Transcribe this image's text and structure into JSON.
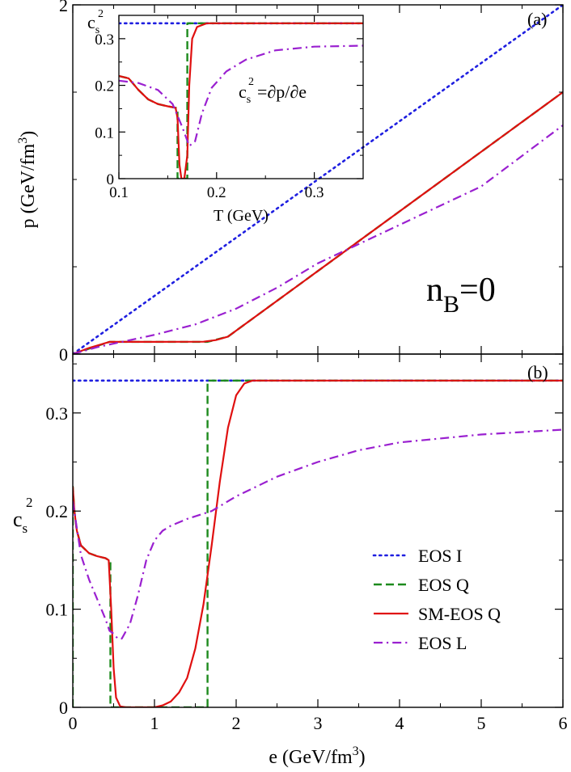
{
  "chart_data": [
    {
      "id": "panel-a",
      "type": "line",
      "panel_label": "(a)",
      "xlabel": "",
      "ylabel_main": "p (GeV/fm",
      "ylabel_sup": "3",
      "ylabel_close": ")",
      "xlim": [
        0,
        6
      ],
      "ylim": [
        0,
        2.0
      ],
      "yticks": [
        0,
        2
      ],
      "annotation_main": "n",
      "annotation_sub": "B",
      "annotation_rest": "=0",
      "series": [
        {
          "name": "EOS I",
          "color": "#1f1fe0",
          "dash": "dotted",
          "x": [
            0,
            6
          ],
          "y": [
            0,
            2.0
          ]
        },
        {
          "name": "EOS Q",
          "color": "#1d8a1d",
          "dash": "dashed",
          "x": [
            0,
            0.45,
            1.2,
            1.65,
            1.9,
            6
          ],
          "y": [
            0,
            0.07,
            0.07,
            0.07,
            0.1,
            1.5
          ]
        },
        {
          "name": "SM-EOS Q",
          "color": "#e01010",
          "dash": "solid",
          "x": [
            0,
            0.2,
            0.45,
            1.0,
            1.6,
            1.75,
            1.9,
            6
          ],
          "y": [
            0,
            0.035,
            0.07,
            0.07,
            0.071,
            0.08,
            0.1,
            1.5
          ]
        },
        {
          "name": "EOS L",
          "color": "#9a20d0",
          "dash": "dashdot",
          "x": [
            0,
            0.3,
            0.6,
            1.0,
            1.5,
            2.0,
            2.5,
            3.0,
            4.0,
            5.0,
            6.0
          ],
          "y": [
            0,
            0.04,
            0.07,
            0.11,
            0.17,
            0.26,
            0.38,
            0.52,
            0.74,
            0.96,
            1.31
          ]
        }
      ]
    },
    {
      "id": "inset",
      "type": "line",
      "ylabel_main": "c",
      "ylabel_sub": "s",
      "ylabel_sup": "2",
      "xlabel": "T (GeV)",
      "xlim": [
        0.1,
        0.35
      ],
      "ylim": [
        0,
        0.35
      ],
      "xticks": [
        0.1,
        0.2,
        0.3
      ],
      "yticks": [
        0,
        0.1,
        0.2,
        0.3
      ],
      "formula_c": "c",
      "formula_s": "s",
      "formula_2": "2",
      "formula_rest": "=∂p/∂e",
      "series": [
        {
          "name": "EOS I",
          "color": "#1f1fe0",
          "dash": "dotted",
          "x": [
            0.1,
            0.35
          ],
          "y": [
            0.333,
            0.333
          ]
        },
        {
          "name": "EOS Q",
          "color": "#1d8a1d",
          "dash": "dashed",
          "x": [
            0.1,
            0.11,
            0.12,
            0.13,
            0.14,
            0.15,
            0.158,
            0.16,
            0.16,
            0.17,
            0.17,
            0.35
          ],
          "y": [
            0.22,
            0.215,
            0.19,
            0.17,
            0.16,
            0.155,
            0.152,
            0.15,
            0.0,
            0.0,
            0.333,
            0.333
          ]
        },
        {
          "name": "SM-EOS Q",
          "color": "#e01010",
          "dash": "solid",
          "x": [
            0.1,
            0.11,
            0.12,
            0.13,
            0.14,
            0.15,
            0.158,
            0.16,
            0.162,
            0.164,
            0.167,
            0.17,
            0.172,
            0.175,
            0.18,
            0.19,
            0.2,
            0.35
          ],
          "y": [
            0.22,
            0.215,
            0.19,
            0.17,
            0.16,
            0.155,
            0.152,
            0.13,
            0.03,
            0.0,
            0.0,
            0.05,
            0.2,
            0.3,
            0.325,
            0.333,
            0.333,
            0.333
          ]
        },
        {
          "name": "EOS L",
          "color": "#9a20d0",
          "dash": "dashdot",
          "x": [
            0.1,
            0.12,
            0.14,
            0.155,
            0.165,
            0.172,
            0.178,
            0.185,
            0.195,
            0.21,
            0.23,
            0.26,
            0.3,
            0.35
          ],
          "y": [
            0.21,
            0.205,
            0.19,
            0.16,
            0.11,
            0.07,
            0.08,
            0.14,
            0.195,
            0.23,
            0.255,
            0.275,
            0.283,
            0.285
          ]
        }
      ]
    },
    {
      "id": "panel-b",
      "type": "line",
      "panel_label": "(b)",
      "xlabel_main": "e (GeV/fm",
      "xlabel_sup": "3",
      "xlabel_close": ")",
      "ylabel_main": "c",
      "ylabel_sub": "s",
      "ylabel_sup": "2",
      "xlim": [
        0,
        6
      ],
      "ylim": [
        0,
        0.36
      ],
      "xticks": [
        0,
        1,
        2,
        3,
        4,
        5,
        6
      ],
      "yticks": [
        0,
        0.1,
        0.2,
        0.3
      ],
      "legend_position": "right-middle",
      "legend": [
        "EOS I",
        "EOS Q",
        "SM-EOS Q",
        "EOS L"
      ],
      "series": [
        {
          "name": "EOS I",
          "color": "#1f1fe0",
          "dash": "dotted",
          "x": [
            0,
            6
          ],
          "y": [
            0.333,
            0.333
          ]
        },
        {
          "name": "EOS Q",
          "color": "#1d8a1d",
          "dash": "dashed",
          "x": [
            0,
            0,
            0.02,
            0.05,
            0.1,
            0.2,
            0.3,
            0.4,
            0.44,
            0.46,
            0.46,
            1.65,
            1.65,
            6
          ],
          "y": [
            0,
            0.225,
            0.2,
            0.18,
            0.165,
            0.157,
            0.154,
            0.152,
            0.15,
            0.148,
            0,
            0,
            0.333,
            0.333
          ]
        },
        {
          "name": "SM-EOS Q",
          "color": "#e01010",
          "dash": "solid",
          "x": [
            0,
            0.02,
            0.05,
            0.1,
            0.2,
            0.3,
            0.4,
            0.44,
            0.47,
            0.5,
            0.53,
            0.58,
            0.65,
            1.0,
            1.1,
            1.2,
            1.3,
            1.4,
            1.5,
            1.6,
            1.7,
            1.8,
            1.9,
            2.0,
            2.1,
            2.2,
            2.4,
            6.0
          ],
          "y": [
            0.225,
            0.2,
            0.18,
            0.165,
            0.157,
            0.154,
            0.152,
            0.15,
            0.1,
            0.04,
            0.01,
            0.001,
            0,
            0,
            0.002,
            0.006,
            0.015,
            0.03,
            0.06,
            0.105,
            0.165,
            0.23,
            0.285,
            0.318,
            0.33,
            0.333,
            0.333,
            0.333
          ]
        },
        {
          "name": "EOS L",
          "color": "#9a20d0",
          "dash": "dashdot",
          "x": [
            0,
            0.1,
            0.2,
            0.3,
            0.4,
            0.45,
            0.5,
            0.55,
            0.6,
            0.7,
            0.8,
            0.9,
            1.0,
            1.1,
            1.2,
            1.4,
            1.7,
            2.0,
            2.5,
            3.0,
            3.5,
            4.0,
            5.0,
            6.0
          ],
          "y": [
            0.21,
            0.155,
            0.13,
            0.11,
            0.09,
            0.078,
            0.075,
            0.07,
            0.07,
            0.085,
            0.115,
            0.15,
            0.17,
            0.18,
            0.185,
            0.192,
            0.2,
            0.215,
            0.235,
            0.25,
            0.262,
            0.27,
            0.278,
            0.283
          ]
        }
      ]
    }
  ]
}
